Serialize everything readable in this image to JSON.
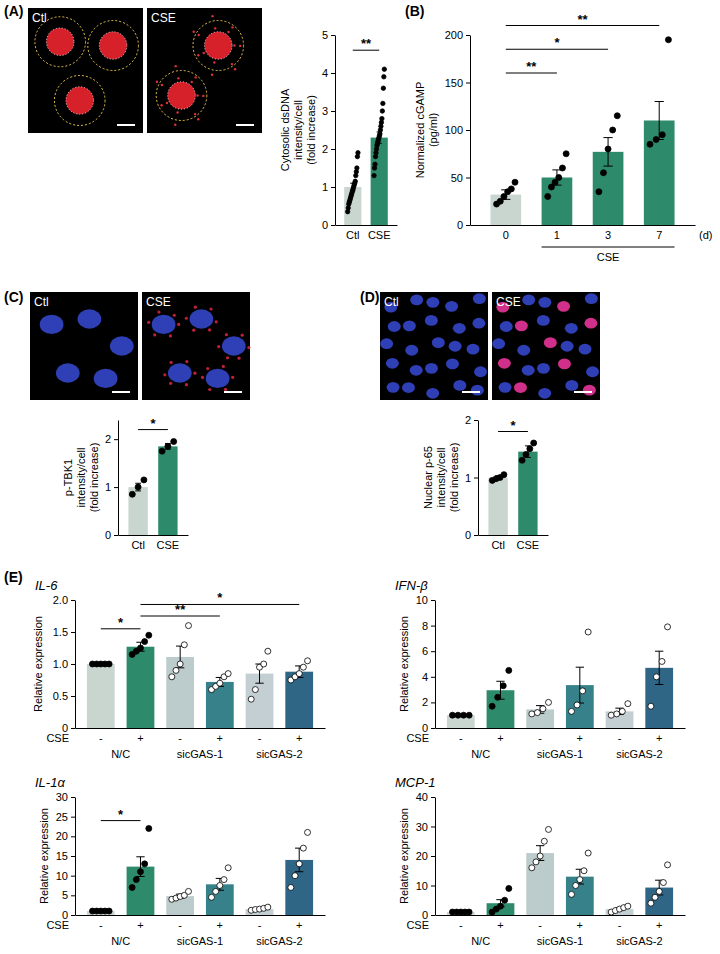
{
  "panels": [
    {
      "label": "(A)",
      "images": [
        "Ctl",
        "CSE"
      ]
    },
    {
      "label": "(B)"
    },
    {
      "label": "(C)",
      "images": [
        "Ctl",
        "CSE"
      ]
    },
    {
      "label": "(D)",
      "images": [
        "Ctl",
        "CSE"
      ]
    },
    {
      "label": "(E)"
    }
  ],
  "chart_data": [
    {
      "type": "bar",
      "y_label": [
        "Cytosolic dsDNA",
        "intensity/cell",
        "(fold increase)"
      ],
      "categories": [
        "Ctl",
        "CSE"
      ],
      "series": [
        {
          "colors": [
            "#c9d6cf",
            "#2d8a6a"
          ],
          "marker": "filled",
          "values": [
            1.0,
            2.3
          ],
          "errors": [
            0.1,
            0.15
          ],
          "points": [
            [
              0.35,
              0.45,
              0.55,
              0.6,
              0.65,
              0.7,
              0.75,
              0.8,
              0.85,
              0.9,
              0.95,
              1.0,
              1.05,
              1.1,
              1.15,
              1.3,
              1.4,
              1.5,
              1.8,
              1.9
            ],
            [
              1.3,
              1.5,
              1.6,
              1.8,
              1.9,
              2.0,
              2.1,
              2.15,
              2.2,
              2.25,
              2.3,
              2.35,
              2.4,
              2.5,
              2.6,
              2.7,
              2.8,
              3.0,
              3.2,
              3.6,
              3.9,
              4.1
            ]
          ]
        }
      ],
      "ylim": [
        0,
        5
      ],
      "yticks": [
        0,
        1,
        2,
        3,
        4,
        5
      ],
      "annotations": [
        {
          "text": "**",
          "from": 0,
          "to": 1,
          "y": 4.6
        }
      ]
    },
    {
      "type": "bar",
      "y_label": [
        "Normalized cGAMP",
        "(pg/ml)"
      ],
      "categories": [
        "0",
        "1",
        "3",
        "7"
      ],
      "x_label": "(d)",
      "bracket": {
        "text": "CSE",
        "from": 1,
        "to": 3
      },
      "series": [
        {
          "colors": [
            "#c9d6cf",
            "#2d8a6a",
            "#2d8a6a",
            "#2d8a6a"
          ],
          "marker": "filled",
          "values": [
            32,
            50,
            77,
            110
          ],
          "errors": [
            5,
            8,
            15,
            20
          ],
          "points": [
            [
              22,
              25,
              30,
              35,
              38,
              45
            ],
            [
              30,
              40,
              45,
              50,
              60,
              75
            ],
            [
              35,
              55,
              80,
              100,
              115
            ],
            [
              85,
              90,
              95,
              195
            ]
          ]
        }
      ],
      "ylim": [
        0,
        200
      ],
      "yticks": [
        0,
        50,
        100,
        150,
        200
      ],
      "annotations": [
        {
          "text": "**",
          "from": 0,
          "to": 1,
          "y": 160
        },
        {
          "text": "*",
          "from": 0,
          "to": 2,
          "y": 185
        },
        {
          "text": "**",
          "from": 0,
          "to": 3,
          "y": 210
        }
      ]
    },
    {
      "type": "bar",
      "y_label": [
        "p-TBK1",
        "intensity/cell",
        "(fold increase)"
      ],
      "categories": [
        "Ctl",
        "CSE"
      ],
      "series": [
        {
          "colors": [
            "#c9d6cf",
            "#2d8a6a"
          ],
          "marker": "filled",
          "values": [
            1.0,
            1.85
          ],
          "errors": [
            0.08,
            0.06
          ],
          "points": [
            [
              0.85,
              1.0,
              1.15
            ],
            [
              1.75,
              1.85,
              1.95
            ]
          ]
        }
      ],
      "ylim": [
        0,
        2.4
      ],
      "yticks": [
        0,
        1,
        2
      ],
      "annotations": [
        {
          "text": "*",
          "from": 0,
          "to": 1,
          "y": 2.2
        }
      ]
    },
    {
      "type": "bar",
      "y_label": [
        "Nuclear p-65",
        "intensity/cell",
        "(fold increase)"
      ],
      "categories": [
        "Ctl",
        "CSE"
      ],
      "series": [
        {
          "colors": [
            "#c9d6cf",
            "#2d8a6a"
          ],
          "marker": "filled",
          "values": [
            1.0,
            1.45
          ],
          "errors": [
            0.03,
            0.1
          ],
          "points": [
            [
              0.95,
              0.98,
              1.0,
              1.05
            ],
            [
              1.3,
              1.4,
              1.5,
              1.6
            ]
          ]
        }
      ],
      "ylim": [
        0,
        2
      ],
      "yticks": [
        0,
        1,
        2
      ],
      "annotations": [
        {
          "text": "*",
          "from": 0,
          "to": 1,
          "y": 1.8
        }
      ]
    },
    {
      "type": "bar",
      "title": "IL-6",
      "y_label": [
        "Relative expression"
      ],
      "x_label": "CSE",
      "categories": [
        "-",
        "+"
      ],
      "series": [
        {
          "name": "N/C",
          "colors": [
            "#c9d6cf",
            "#2d8a6a"
          ],
          "marker": "filled",
          "values": [
            1.0,
            1.27
          ],
          "errors": [
            0.0,
            0.07
          ],
          "points": [
            [
              1,
              1,
              1,
              1,
              1
            ],
            [
              1.15,
              1.2,
              1.25,
              1.35,
              1.45
            ]
          ]
        },
        {
          "name": "sicGAS-1",
          "colors": [
            "#bccccc",
            "#37828a"
          ],
          "marker": "open",
          "values": [
            1.11,
            0.72
          ],
          "errors": [
            0.17,
            0.07
          ],
          "points": [
            [
              0.8,
              0.9,
              1.0,
              1.3,
              1.6
            ],
            [
              0.6,
              0.65,
              0.7,
              0.8,
              0.85
            ]
          ]
        },
        {
          "name": "sicGAS-2",
          "colors": [
            "#c3cfd2",
            "#2f6686"
          ],
          "marker": "open",
          "values": [
            0.85,
            0.88
          ],
          "errors": [
            0.15,
            0.09
          ],
          "points": [
            [
              0.45,
              0.6,
              0.95,
              1.0,
              1.2
            ],
            [
              0.75,
              0.8,
              0.85,
              0.95,
              1.05
            ]
          ]
        }
      ],
      "ylim": [
        0,
        2
      ],
      "yticks": [
        0,
        0.5,
        {
          "value": 1,
          "label": "1.0"
        },
        1.5,
        {
          "value": 2,
          "label": "2.0"
        }
      ],
      "annotations": [
        {
          "text": "*",
          "from": 0,
          "to": 1,
          "y": 1.55
        },
        {
          "text": "**",
          "from": 1,
          "to": 3,
          "y": 1.75
        },
        {
          "text": "*",
          "from": 1,
          "to": 5,
          "y": 1.93
        }
      ]
    },
    {
      "type": "bar",
      "title": "IFN-β",
      "y_label": [
        "Relative expression"
      ],
      "x_label": "CSE",
      "categories": [
        "-",
        "+"
      ],
      "series": [
        {
          "name": "N/C",
          "colors": [
            "#c9d6cf",
            "#2d8a6a"
          ],
          "marker": "filled",
          "values": [
            1.0,
            2.95
          ],
          "errors": [
            0.0,
            0.7
          ],
          "points": [
            [
              1,
              1,
              1,
              1
            ],
            [
              1.7,
              2.4,
              3.3,
              4.5
            ]
          ]
        },
        {
          "name": "sicGAS-1",
          "colors": [
            "#bccccc",
            "#37828a"
          ],
          "marker": "open",
          "values": [
            1.45,
            3.35
          ],
          "errors": [
            0.3,
            1.4
          ],
          "points": [
            [
              1.1,
              1.2,
              1.5,
              2.0
            ],
            [
              1.3,
              1.8,
              2.9,
              7.5
            ]
          ]
        },
        {
          "name": "sicGAS-2",
          "colors": [
            "#c3cfd2",
            "#2f6686"
          ],
          "marker": "open",
          "values": [
            1.3,
            4.7
          ],
          "errors": [
            0.25,
            1.3
          ],
          "points": [
            [
              1.0,
              1.1,
              1.3,
              1.9
            ],
            [
              1.7,
              4.0,
              5.2,
              7.9
            ]
          ]
        }
      ],
      "ylim": [
        0,
        10
      ],
      "yticks": [
        0,
        2,
        4,
        6,
        8,
        10
      ],
      "annotations": []
    },
    {
      "type": "bar",
      "title": "IL-1α",
      "y_label": [
        "Relative expression"
      ],
      "x_label": "CSE",
      "categories": [
        "-",
        "+"
      ],
      "series": [
        {
          "name": "N/C",
          "colors": [
            "#c9d6cf",
            "#2d8a6a"
          ],
          "marker": "filled",
          "values": [
            1.0,
            12.3
          ],
          "errors": [
            0.0,
            2.5
          ],
          "points": [
            [
              1,
              1,
              1,
              1,
              1
            ],
            [
              7,
              9,
              11,
              13,
              22
            ]
          ]
        },
        {
          "name": "sicGAS-1",
          "colors": [
            "#bccccc",
            "#37828a"
          ],
          "marker": "open",
          "values": [
            4.8,
            7.8
          ],
          "errors": [
            0.5,
            1.5
          ],
          "points": [
            [
              4,
              4.3,
              4.7,
              5,
              6
            ],
            [
              4.5,
              6,
              7.5,
              9,
              12
            ]
          ]
        },
        {
          "name": "sicGAS-2",
          "colors": [
            "#c3cfd2",
            "#2f6686"
          ],
          "marker": "open",
          "values": [
            1.5,
            14
          ],
          "errors": [
            0.3,
            3
          ],
          "points": [
            [
              1.2,
              1.4,
              1.5,
              1.7,
              2
            ],
            [
              7,
              10,
              13,
              17,
              21
            ]
          ]
        }
      ],
      "ylim": [
        0,
        30
      ],
      "yticks": [
        0,
        5,
        10,
        15,
        20,
        25,
        30
      ],
      "annotations": [
        {
          "text": "*",
          "from": 0,
          "to": 1,
          "y": 24
        }
      ]
    },
    {
      "type": "bar",
      "title": "MCP-1",
      "y_label": [
        "Relative expression"
      ],
      "x_label": "CSE",
      "categories": [
        "-",
        "+"
      ],
      "series": [
        {
          "name": "N/C",
          "colors": [
            "#c9d6cf",
            "#2d8a6a"
          ],
          "marker": "filled",
          "values": [
            1.0,
            4.0
          ],
          "errors": [
            0.0,
            1.2
          ],
          "points": [
            [
              1,
              1,
              1,
              1,
              1
            ],
            [
              1,
              2,
              3,
              5,
              9
            ]
          ]
        },
        {
          "name": "sicGAS-1",
          "colors": [
            "#bccccc",
            "#37828a"
          ],
          "marker": "open",
          "values": [
            21,
            13
          ],
          "errors": [
            2.5,
            2.5
          ],
          "points": [
            [
              16,
              18,
              20,
              25,
              29
            ],
            [
              7,
              10,
              12,
              15,
              21
            ]
          ]
        },
        {
          "name": "sicGAS-2",
          "colors": [
            "#c3cfd2",
            "#2f6686"
          ],
          "marker": "open",
          "values": [
            2.0,
            9.3
          ],
          "errors": [
            0.5,
            2.5
          ],
          "points": [
            [
              1,
              1.5,
              2,
              2.5,
              3
            ],
            [
              4,
              6,
              8,
              11,
              17
            ]
          ]
        }
      ],
      "ylim": [
        0,
        40
      ],
      "yticks": [
        0,
        10,
        20,
        30,
        40
      ],
      "annotations": []
    }
  ]
}
